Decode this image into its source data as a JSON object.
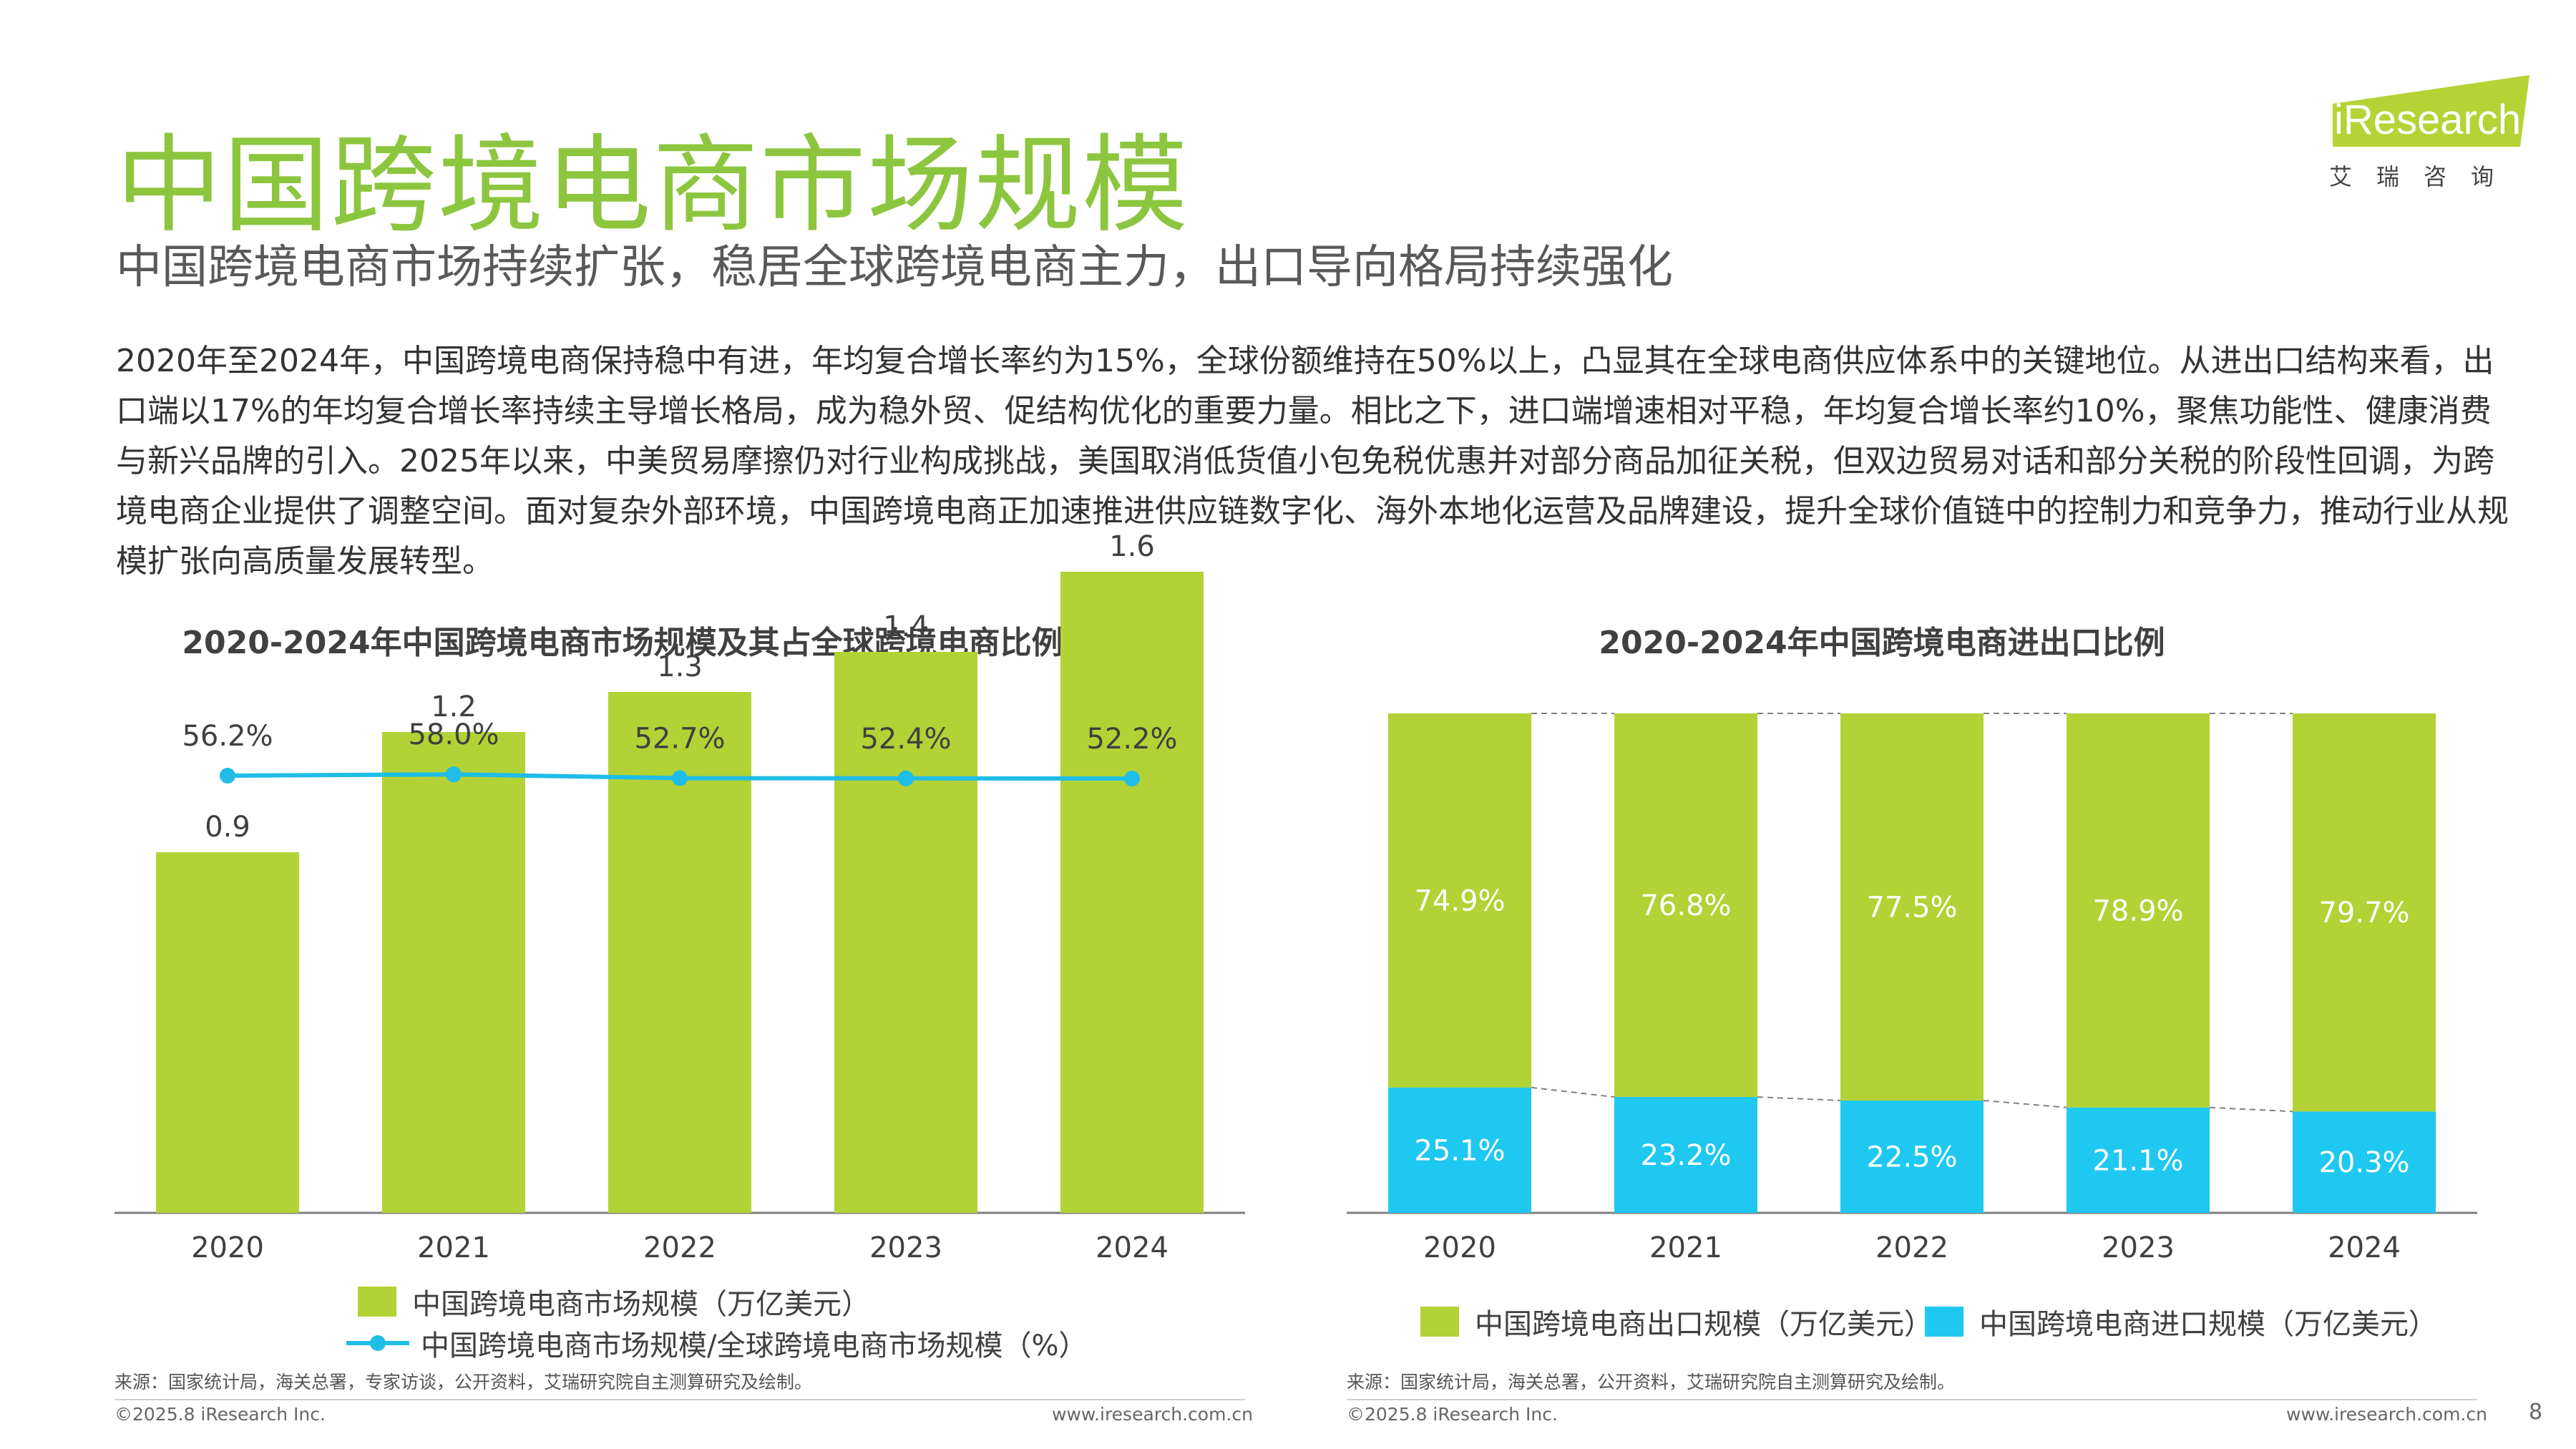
{
  "header": {
    "title": "中国跨境电商市场规模",
    "subtitle": "中国跨境电商市场持续扩张，稳居全球跨境电商主力，出口导向格局持续强化",
    "body": "2020年至2024年，中国跨境电商保持稳中有进，年均复合增长率约为15%，全球份额维持在50%以上，凸显其在全球电商供应体系中的关键地位。从进出口结构来看，出口端以17%的年均复合增长率持续主导增长格局，成为稳外贸、促结构优化的重要力量。相比之下，进口端增速相对平稳，年均复合增长率约10%，聚焦功能性、健康消费与新兴品牌的引入。2025年以来，中美贸易摩擦仍对行业构成挑战，美国取消低货值小包免税优惠并对部分商品加征关税，但双边贸易对话和部分关税的阶段性回调，为跨境电商企业提供了调整空间。面对复杂外部环境，中国跨境电商正加速推进供应链数字化、海外本地化运营及品牌建设，提升全球价值链中的控制力和竞争力，推动行业从规模扩张向高质量发展转型。"
  },
  "logo": {
    "text": "iResearch",
    "cn": "艾瑞咨询",
    "color": "#b5d334"
  },
  "chart_data": [
    {
      "type": "bar",
      "title": "2020-2024年中国跨境电商市场规模及其占全球跨境电商比例",
      "categories": [
        "2020",
        "2021",
        "2022",
        "2023",
        "2024"
      ],
      "series": [
        {
          "name": "中国跨境电商市场规模（万亿美元）",
          "kind": "bar",
          "values": [
            0.9,
            1.2,
            1.3,
            1.4,
            1.6
          ],
          "labels": [
            "0.9",
            "1.2",
            "1.3",
            "1.4",
            "1.6"
          ],
          "color": "#b2d235"
        },
        {
          "name": "中国跨境电商市场规模/全球跨境电商市场规模（%）",
          "kind": "line",
          "values": [
            56.2,
            58.0,
            52.7,
            52.4,
            52.2
          ],
          "labels": [
            "56.2%",
            "58.0%",
            "52.7%",
            "52.4%",
            "52.2%"
          ],
          "color": "#1fbde8"
        }
      ],
      "legend": "bottom",
      "grid": false,
      "source": "来源：国家统计局，海关总署，专家访谈，公开资料，艾瑞研究院自主测算研究及绘制。"
    },
    {
      "type": "bar",
      "stacked": true,
      "title": "2020-2024年中国跨境电商进出口比例",
      "categories": [
        "2020",
        "2021",
        "2022",
        "2023",
        "2024"
      ],
      "series": [
        {
          "name": "中国跨境电商出口规模（万亿美元）",
          "values": [
            74.9,
            76.8,
            77.5,
            78.9,
            79.7
          ],
          "labels": [
            "74.9%",
            "76.8%",
            "77.5%",
            "78.9%",
            "79.7%"
          ],
          "color": "#b2d235"
        },
        {
          "name": "中国跨境电商进口规模（万亿美元）",
          "values": [
            25.1,
            23.2,
            22.5,
            21.1,
            20.3
          ],
          "labels": [
            "25.1%",
            "23.2%",
            "22.5%",
            "21.1%",
            "20.3%"
          ],
          "color": "#1fc8f0"
        }
      ],
      "ylim": [
        0,
        100
      ],
      "legend": "bottom",
      "grid": false,
      "source": "来源：国家统计局，海关总署，公开资料，艾瑞研究院自主测算研究及绘制。"
    }
  ],
  "footer": {
    "copyright_left": "©2025.8 iResearch Inc.",
    "url_left": "www.iresearch.com.cn",
    "copyright_right": "©2025.8 iResearch Inc.",
    "url_right": "www.iresearch.com.cn",
    "page_number": "8"
  }
}
